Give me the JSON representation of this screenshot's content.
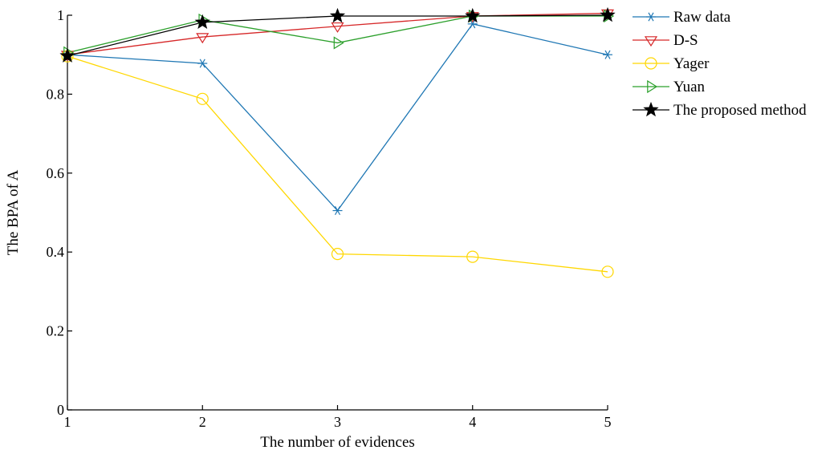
{
  "chart_data": {
    "type": "line",
    "title": "",
    "xlabel": "The number of evidences",
    "ylabel": "The BPA of A",
    "x": [
      1,
      2,
      3,
      4,
      5
    ],
    "xlim": [
      1,
      5
    ],
    "ylim": [
      0,
      1
    ],
    "xticks": [
      "1",
      "2",
      "3",
      "4",
      "5"
    ],
    "yticks": [
      "0",
      "0.2",
      "0.4",
      "0.6",
      "0.8",
      "1"
    ],
    "grid": false,
    "legend_position": "right",
    "series": [
      {
        "name": "Raw data",
        "color": "#1f77b4",
        "marker": "asterisk",
        "values": [
          0.9,
          0.878,
          0.505,
          0.978,
          0.9
        ]
      },
      {
        "name": "D-S",
        "color": "#d62728",
        "marker": "triangle-down",
        "values": [
          0.9,
          0.945,
          0.972,
          0.998,
          1.005
        ]
      },
      {
        "name": "Yager",
        "color": "#ffd700",
        "marker": "circle",
        "values": [
          0.896,
          0.788,
          0.395,
          0.388,
          0.35
        ]
      },
      {
        "name": "Yuan",
        "color": "#2ca02c",
        "marker": "triangle-right",
        "values": [
          0.905,
          0.988,
          0.93,
          0.998,
          0.998
        ]
      },
      {
        "name": "The proposed method",
        "color": "#000000",
        "marker": "star",
        "values": [
          0.897,
          0.982,
          0.998,
          0.998,
          1.0
        ]
      }
    ]
  }
}
